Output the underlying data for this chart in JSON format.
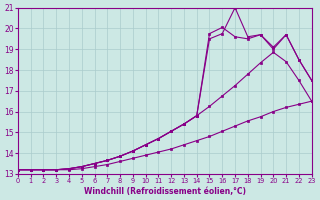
{
  "xlabel": "Windchill (Refroidissement éolien,°C)",
  "xlim": [
    0,
    23
  ],
  "ylim": [
    13,
    21
  ],
  "xticks": [
    0,
    1,
    2,
    3,
    4,
    5,
    6,
    7,
    8,
    9,
    10,
    11,
    12,
    13,
    14,
    15,
    16,
    17,
    18,
    19,
    20,
    21,
    22,
    23
  ],
  "yticks": [
    13,
    14,
    15,
    16,
    17,
    18,
    19,
    20,
    21
  ],
  "bg_color": "#cce8e4",
  "grid_color": "#aacccc",
  "line_color": "#880088",
  "curves": [
    [
      13.2,
      13.2,
      13.2,
      13.2,
      13.2,
      13.25,
      13.35,
      13.45,
      13.6,
      13.75,
      13.9,
      14.05,
      14.2,
      14.4,
      14.6,
      14.8,
      15.05,
      15.3,
      15.55,
      15.75,
      16.0,
      16.2,
      16.35,
      16.5
    ],
    [
      13.2,
      13.2,
      13.2,
      13.2,
      13.25,
      13.35,
      13.5,
      13.65,
      13.85,
      14.1,
      14.4,
      14.7,
      15.05,
      15.4,
      15.8,
      16.25,
      16.75,
      17.25,
      17.8,
      18.35,
      18.85,
      18.4,
      17.5,
      16.5
    ],
    [
      13.2,
      13.2,
      13.2,
      13.2,
      13.25,
      13.35,
      13.5,
      13.65,
      13.85,
      14.1,
      14.4,
      14.7,
      15.05,
      15.4,
      15.8,
      19.75,
      20.05,
      19.6,
      19.5,
      19.7,
      19.1,
      19.7,
      18.5,
      17.5
    ],
    [
      13.2,
      13.2,
      13.2,
      13.2,
      13.25,
      13.35,
      13.5,
      13.65,
      13.85,
      14.1,
      14.4,
      14.7,
      15.05,
      15.4,
      15.8,
      19.5,
      19.75,
      21.0,
      19.6,
      19.7,
      19.0,
      19.7,
      18.5,
      17.5
    ]
  ]
}
